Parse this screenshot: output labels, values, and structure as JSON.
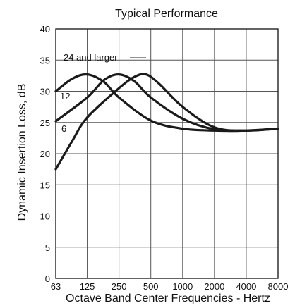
{
  "chart_data": {
    "type": "line",
    "title": "Typical Performance",
    "xlabel": "Octave Band Center Frequencies - Hertz",
    "ylabel": "Dynamic Insertion Loss, dB",
    "categories": [
      "63",
      "125",
      "250",
      "500",
      "1000",
      "2000",
      "4000",
      "8000"
    ],
    "yticks": [
      "0",
      "5",
      "10",
      "15",
      "20",
      "25",
      "30",
      "35",
      "40"
    ],
    "ylim": [
      0,
      40
    ],
    "grid": true,
    "series": [
      {
        "name": "24 and larger",
        "x": [
          63,
          90,
          125,
          180,
          250,
          500,
          1000,
          2000,
          4000,
          8000
        ],
        "y": [
          30,
          32,
          32.7,
          31.5,
          29,
          25.3,
          24,
          23.7,
          23.7,
          24
        ]
      },
      {
        "name": "12",
        "x": [
          63,
          125,
          180,
          250,
          350,
          500,
          1000,
          2000,
          4000,
          8000
        ],
        "y": [
          25.2,
          29,
          31.8,
          32.7,
          31.6,
          29,
          25.6,
          23.9,
          23.7,
          24
        ]
      },
      {
        "name": "6",
        "x": [
          63,
          90,
          125,
          250,
          350,
          450,
          600,
          1000,
          2000,
          4000,
          8000
        ],
        "y": [
          17.5,
          22,
          25.8,
          30.5,
          32.3,
          32.7,
          31.2,
          27.5,
          24.2,
          23.7,
          24
        ]
      }
    ]
  }
}
